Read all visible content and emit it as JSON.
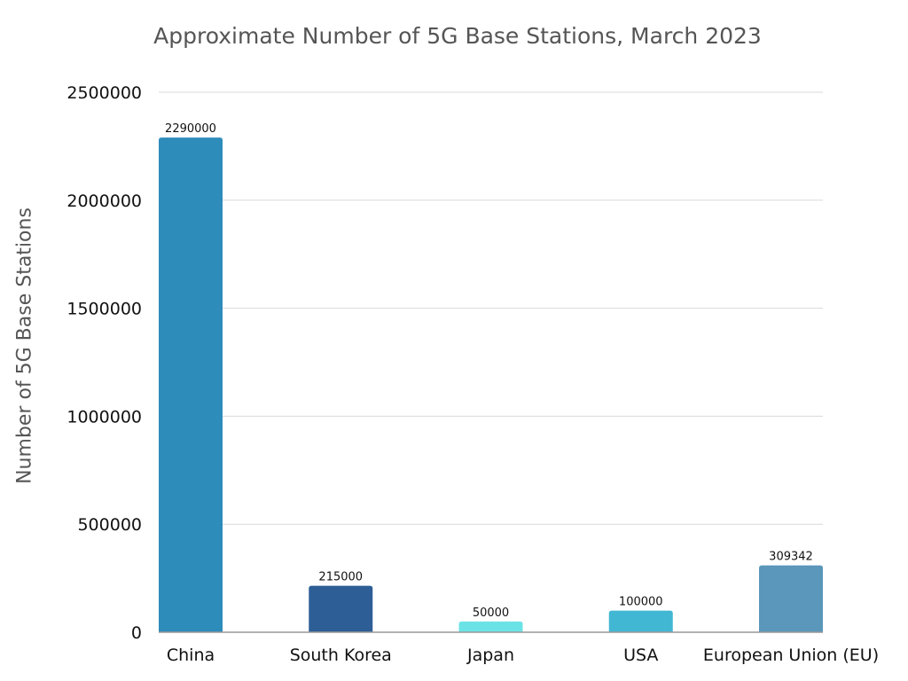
{
  "chart_data": {
    "type": "bar",
    "title": "Approximate Number of 5G Base Stations, March 2023",
    "xlabel": "",
    "ylabel": "Number of 5G Base Stations",
    "ylim": [
      0,
      2500000
    ],
    "yticks": [
      0,
      500000,
      1000000,
      1500000,
      2000000,
      2500000
    ],
    "grid": true,
    "categories": [
      "China",
      "South Korea",
      "Japan",
      "USA",
      "European Union (EU)"
    ],
    "values": [
      2290000,
      215000,
      50000,
      100000,
      309342
    ],
    "data_labels": [
      "2290000",
      "215000",
      "50000",
      "100000",
      "309342"
    ],
    "colors": [
      "#2E8CBB",
      "#2D5E96",
      "#6BE3E6",
      "#42B7D3",
      "#5A97BA"
    ]
  }
}
